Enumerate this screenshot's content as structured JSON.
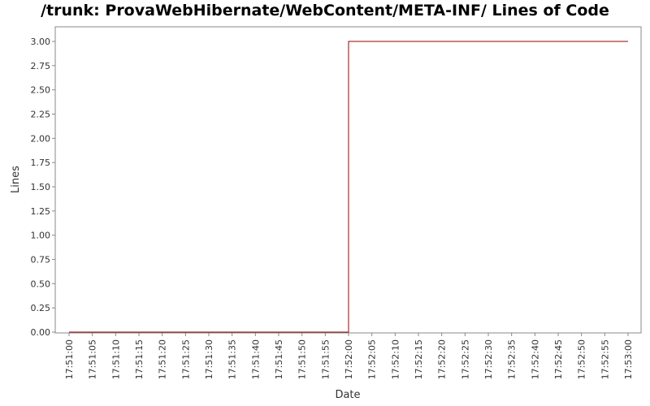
{
  "chart_data": {
    "type": "line",
    "title": "/trunk: ProvaWebHibernate/WebContent/META-INF/ Lines of Code",
    "xlabel": "Date",
    "ylabel": "Lines",
    "step": true,
    "x_ticks": [
      "17:51:00",
      "17:51:05",
      "17:51:10",
      "17:51:15",
      "17:51:20",
      "17:51:25",
      "17:51:30",
      "17:51:35",
      "17:51:40",
      "17:51:45",
      "17:51:50",
      "17:51:55",
      "17:52:00",
      "17:52:05",
      "17:52:10",
      "17:52:15",
      "17:52:20",
      "17:52:25",
      "17:52:30",
      "17:52:35",
      "17:52:40",
      "17:52:45",
      "17:52:50",
      "17:52:55",
      "17:53:00"
    ],
    "y_ticks": [
      "0.00",
      "0.25",
      "0.50",
      "0.75",
      "1.00",
      "1.25",
      "1.50",
      "1.75",
      "2.00",
      "2.25",
      "2.50",
      "2.75",
      "3.00"
    ],
    "ylim": [
      0,
      3.0
    ],
    "grid": false,
    "series": [
      {
        "color": "#990000",
        "points": [
          {
            "x": "17:51:00",
            "y": 0
          },
          {
            "x": "17:52:00",
            "y": 0
          },
          {
            "x": "17:52:00",
            "y": 3
          },
          {
            "x": "17:53:00",
            "y": 3
          }
        ]
      }
    ]
  }
}
